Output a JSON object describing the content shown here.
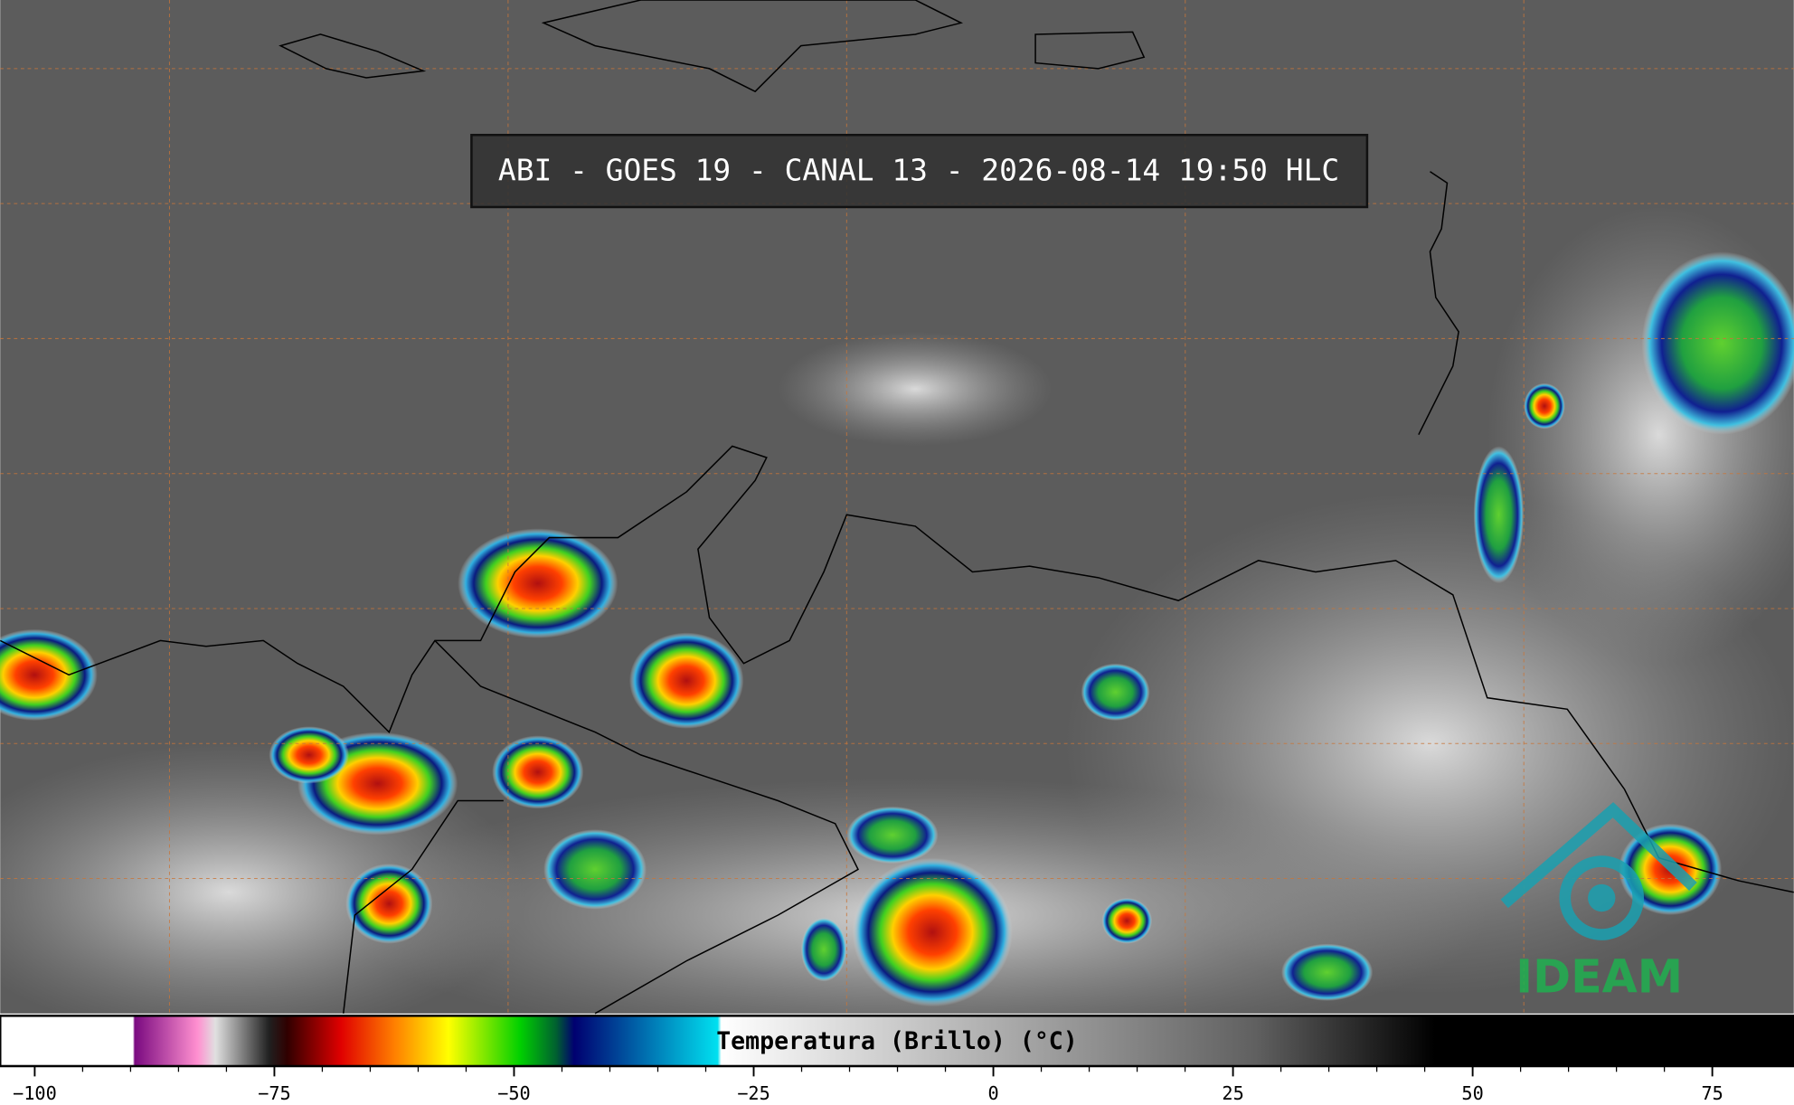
{
  "header": {
    "title": "ABI - GOES 19 - CANAL 13 - 2026-08-14 19:50 HLC"
  },
  "colorbar": {
    "label": "Temperatura (Brillo) (°C)",
    "lim": [
      -103.6,
      83.5
    ],
    "ticks": [
      {
        "value": -100,
        "label": "−100"
      },
      {
        "value": -75,
        "label": "−75"
      },
      {
        "value": -50,
        "label": "−50"
      },
      {
        "value": -25,
        "label": "−25"
      },
      0,
      25,
      50,
      75
    ]
  },
  "logo": {
    "text": "IDEAM"
  }
}
